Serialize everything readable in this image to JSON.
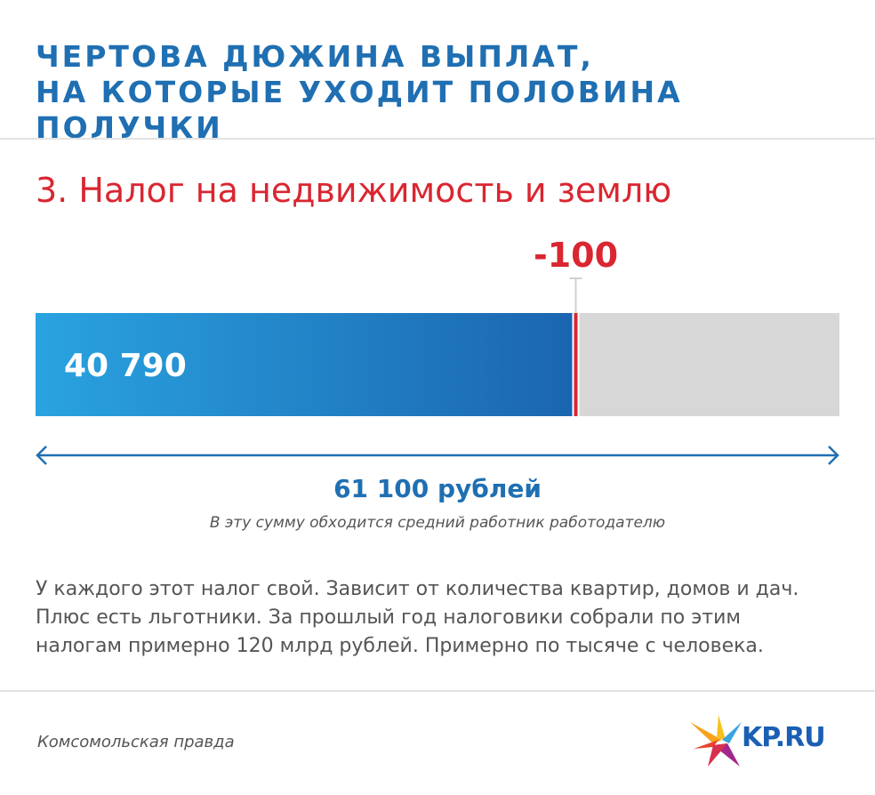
{
  "header": {
    "title_line1": "ЧЕРТОВА ДЮЖИНА ВЫПЛАТ,",
    "title_line2": "НА КОТОРЫЕ УХОДИТ ПОЛОВИНА ПОЛУЧКИ"
  },
  "section": {
    "title": "3. Налог на недвижимость и землю"
  },
  "chart_data": {
    "type": "bar",
    "orientation": "horizontal-stacked",
    "total": 61100,
    "remaining_value": 40790,
    "remaining_label": "40 790",
    "deduction_value": 100,
    "deduction_label": "-100",
    "total_label": "61 100 рублей",
    "total_note": "В эту сумму обходится средний работник работодателю",
    "colors": {
      "remaining_start": "#2aa3e0",
      "remaining_end": "#1b65b0",
      "deduction": "#d92630",
      "rest": "#d7d7d7",
      "arrow": "#1f6fb2"
    }
  },
  "description": {
    "line1": "У каждого этот налог свой. Зависит от количества квартир, домов и дач.",
    "line2": "Плюс есть льготники. За прошлый год налоговики собрали по этим",
    "line3": "налогам примерно 120 млрд рублей. Примерно по тысяче с человека."
  },
  "footer": {
    "source": "Комсомольская правда",
    "logo_text": "KP.RU",
    "logo_icon": "kp-bird-icon"
  }
}
